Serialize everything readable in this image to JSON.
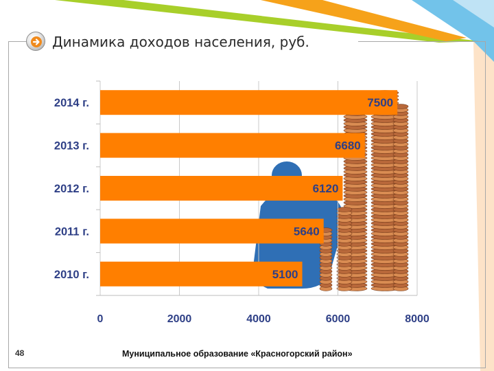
{
  "slide": {
    "title": "Динамика доходов населения, руб.",
    "number": "48",
    "footer": "Муниципальное образование «Красногорский район»"
  },
  "colors": {
    "bar": "#ff7f00",
    "accent_green": "#a8cf2a",
    "accent_orange": "#f6a21a",
    "accent_blue": "#59b8e6"
  },
  "chart_data": {
    "type": "bar",
    "orientation": "horizontal",
    "categories": [
      "2014 г.",
      "2013 г.",
      "2012 г.",
      "2011 г.",
      "2010 г."
    ],
    "values": [
      7500,
      6680,
      6120,
      5640,
      5100
    ],
    "value_labels": [
      "7500",
      "6680",
      "6120",
      "5640",
      "5100"
    ],
    "xlim": [
      0,
      8000
    ],
    "xticks": [
      "0",
      "2000",
      "4000",
      "6000",
      "8000"
    ],
    "grid": true,
    "legend": "none"
  }
}
